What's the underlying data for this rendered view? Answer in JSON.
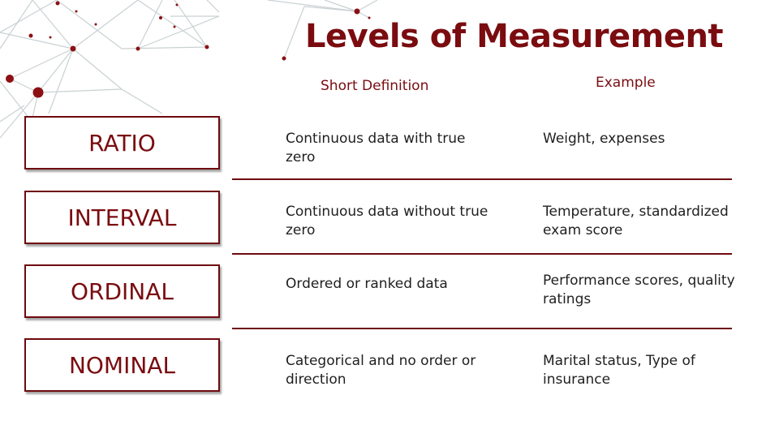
{
  "title": "Levels of Measurement",
  "headers": {
    "definition": "Short Definition",
    "example": "Example"
  },
  "rows": [
    {
      "level": "RATIO",
      "definition": "Continuous data with true zero",
      "example": "Weight, expenses"
    },
    {
      "level": "INTERVAL",
      "definition": "Continuous data without true zero",
      "example": "Temperature, standardized exam score"
    },
    {
      "level": "ORDINAL",
      "definition": "Ordered or ranked data",
      "example": "Performance scores, quality ratings"
    },
    {
      "level": "NOMINAL",
      "definition": "Categorical and no order or direction",
      "example": "Marital status, Type of insurance"
    }
  ],
  "colors": {
    "accent": "#7a0c10",
    "network_line": "#c9d1d3",
    "text": "#1f1f1f"
  }
}
